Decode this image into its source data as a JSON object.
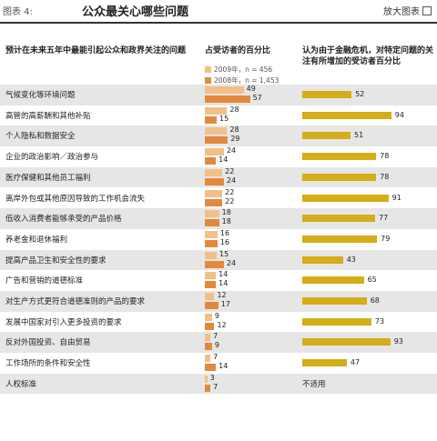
{
  "header": {
    "fig_label": "图表 4:",
    "title": "公众最关心哪些问题",
    "enlarge_label": "放大图表"
  },
  "columns": {
    "issue_header": "预计在未来五年中最能引起公众和政界关注的问题",
    "share_header": "占受访者的百分比",
    "crisis_header": "认为由于金融危机，对特定问题的关注有所增加的受访者百分比"
  },
  "legend": {
    "y2009": "2009年，n = 456",
    "y2008": "2008年，n = 1,453"
  },
  "colors": {
    "y2009": "#f1c088",
    "y2008": "#e3893d",
    "crisis": "#d4ad18"
  },
  "chart_data": {
    "type": "bar",
    "categories": [
      "气候变化等环境问题",
      "高管的高薪酬和其他补贴",
      "个人隐私和数据安全",
      "企业的政治影响／政治参与",
      "医疗保健和其他员工福利",
      "离岸外包或其他原因导致的工作机会流失",
      "低收入消费者能够承受的产品价格",
      "养老金和退休福利",
      "提高产品卫生和安全性的要求",
      "广告和营销的道德标准",
      "对生产方式更符合道德准则的产品的要求",
      "发展中国家对引入更多投资的要求",
      "反对外国投资、自由贸易",
      "工作场所的条件和安全性",
      "人权标准"
    ],
    "series": [
      {
        "name": "2009年，n = 456",
        "values": [
          49,
          28,
          28,
          24,
          22,
          22,
          18,
          16,
          15,
          14,
          12,
          9,
          7,
          7,
          3
        ]
      },
      {
        "name": "2008年，n = 1,453",
        "values": [
          57,
          15,
          29,
          14,
          24,
          22,
          18,
          16,
          24,
          14,
          17,
          12,
          9,
          14,
          7
        ]
      }
    ],
    "crisis_increase": [
      52,
      94,
      51,
      78,
      78,
      91,
      77,
      79,
      43,
      65,
      68,
      73,
      93,
      47,
      null
    ],
    "not_applicable_label": "不适用",
    "xlim_share": [
      0,
      60
    ],
    "xlim_crisis": [
      0,
      100
    ]
  }
}
